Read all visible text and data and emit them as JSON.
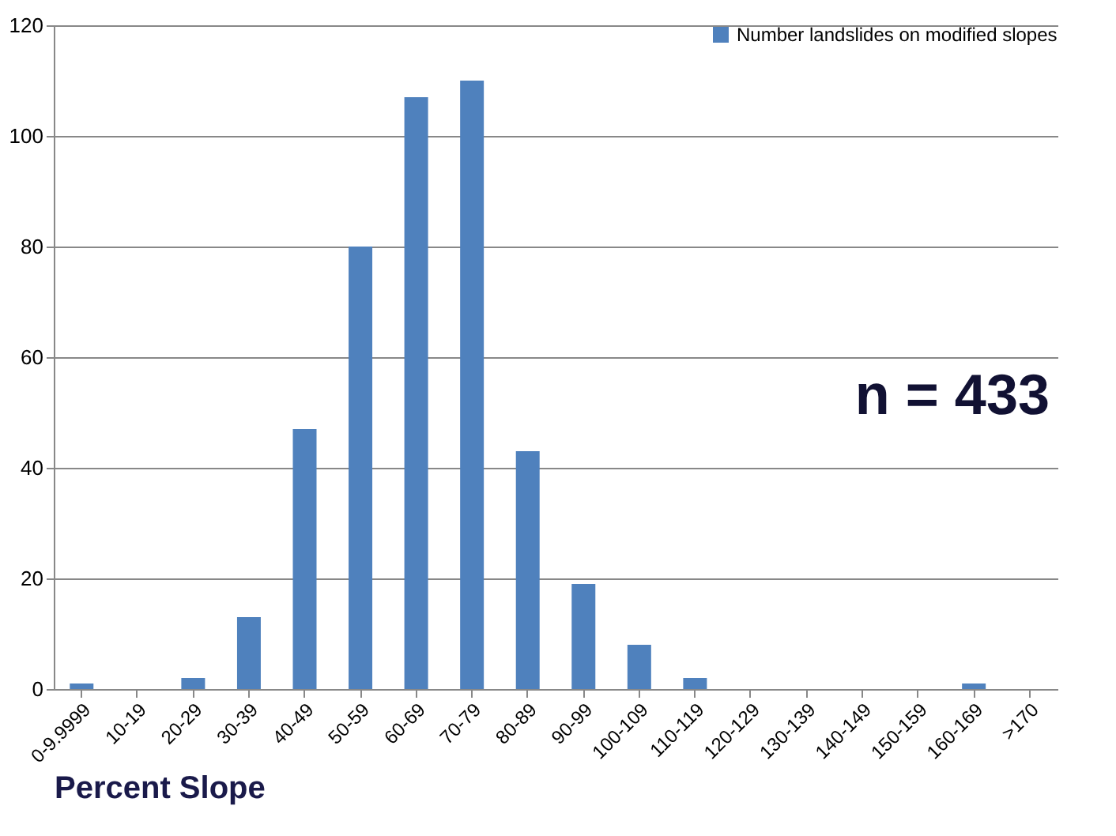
{
  "chart_data": {
    "type": "bar",
    "xlabel": "Percent Slope",
    "categories": [
      "0-9.9999",
      "10-19",
      "20-29",
      "30-39",
      "40-49",
      "50-59",
      "60-69",
      "70-79",
      "80-89",
      "90-99",
      "100-109",
      "110-119",
      "120-129",
      "130-139",
      "140-149",
      "150-159",
      "160-169",
      ">170"
    ],
    "series": [
      {
        "name": "Number landslides on modified slopes",
        "color": "#4f81bd",
        "values": [
          1,
          0,
          2,
          13,
          47,
          80,
          107,
          110,
          43,
          19,
          8,
          2,
          0,
          0,
          0,
          0,
          1,
          0
        ]
      }
    ],
    "ylim": [
      0,
      120
    ],
    "yticks": [
      0,
      20,
      40,
      60,
      80,
      100,
      120
    ],
    "grid": "y",
    "legend": "top right",
    "annotations": [
      "n = 433"
    ]
  }
}
